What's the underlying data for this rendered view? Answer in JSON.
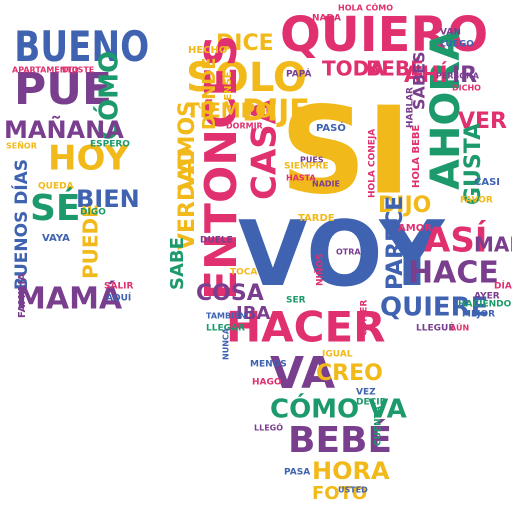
{
  "title": "",
  "colors": {
    "yellow": "#f2b91a",
    "pink": "#e0306f",
    "blue": "#3f63b0",
    "green": "#1d9a6b",
    "purple": "#7a3e8f",
    "orange": "#ea8a22",
    "dark_blue": "#2f4b9a"
  },
  "words": [
    {
      "id": "bueno",
      "text": "BUENO",
      "color": "blue"
    },
    {
      "id": "pue",
      "text": "PUE",
      "color": "purple"
    },
    {
      "id": "como-vertical",
      "text": "CÓMO",
      "color": "green"
    },
    {
      "id": "manana",
      "text": "MAÑANA",
      "color": "purple"
    },
    {
      "id": "hoy",
      "text": "HOY",
      "color": "yellow"
    },
    {
      "id": "se",
      "text": "SÉ",
      "color": "green"
    },
    {
      "id": "bien",
      "text": "BIEN",
      "color": "blue"
    },
    {
      "id": "puede",
      "text": "PUEDE",
      "color": "yellow"
    },
    {
      "id": "buenos-dias",
      "text": "BUENOS DÍAS",
      "color": "blue"
    },
    {
      "id": "mama",
      "text": "MAMÁ",
      "color": "purple"
    },
    {
      "id": "quiero",
      "text": "QUIERO",
      "color": "pink"
    },
    {
      "id": "solo",
      "text": "SOLO",
      "color": "yellow"
    },
    {
      "id": "dice",
      "text": "DICE",
      "color": "yellow"
    },
    {
      "id": "si",
      "text": "SI",
      "color": "yellow"
    },
    {
      "id": "voy",
      "text": "VOY",
      "color": "blue"
    },
    {
      "id": "entonces",
      "text": "ENTONCES",
      "color": "pink"
    },
    {
      "id": "casa",
      "text": "CASA",
      "color": "pink"
    },
    {
      "id": "ahora",
      "text": "AHORA",
      "color": "green"
    },
    {
      "id": "dije",
      "text": "DIJE",
      "color": "yellow"
    },
    {
      "id": "tiempo",
      "text": "TIEMPO",
      "color": "yellow"
    },
    {
      "id": "toda",
      "text": "TODA",
      "color": "pink"
    },
    {
      "id": "bebe-top",
      "text": "BEBÉ",
      "color": "pink"
    },
    {
      "id": "ahi",
      "text": "AHÍ",
      "color": "pink"
    },
    {
      "id": "ir",
      "text": "IR",
      "color": "purple"
    },
    {
      "id": "ver",
      "text": "VER",
      "color": "pink"
    },
    {
      "id": "gusta",
      "text": "GUSTA",
      "color": "green"
    },
    {
      "id": "asi",
      "text": "ASÍ",
      "color": "pink"
    },
    {
      "id": "hace",
      "text": "HACE",
      "color": "purple"
    },
    {
      "id": "mal",
      "text": "MAL",
      "color": "purple"
    },
    {
      "id": "quiere",
      "text": "QUIERE",
      "color": "blue"
    },
    {
      "id": "dijo",
      "text": "DIJO",
      "color": "yellow"
    },
    {
      "id": "parece",
      "text": "PARECE",
      "color": "blue"
    },
    {
      "id": "hacer",
      "text": "HACER",
      "color": "pink"
    },
    {
      "id": "cosa",
      "text": "COSA",
      "color": "purple"
    },
    {
      "id": "iba",
      "text": "IBA",
      "color": "purple"
    },
    {
      "id": "verdad",
      "text": "VERDAD",
      "color": "yellow"
    },
    {
      "id": "vamos",
      "text": "VAMOS",
      "color": "yellow"
    },
    {
      "id": "donde",
      "text": "DÓNDE",
      "color": "yellow"
    },
    {
      "id": "sabe",
      "text": "SABE",
      "color": "green"
    },
    {
      "id": "va",
      "text": "VA",
      "color": "purple"
    },
    {
      "id": "creo",
      "text": "CREO",
      "color": "yellow"
    },
    {
      "id": "como-va",
      "text": "CÓMO VA",
      "color": "green"
    },
    {
      "id": "bebe-bottom",
      "text": "BEBÉ",
      "color": "purple"
    },
    {
      "id": "hora",
      "text": "HORA",
      "color": "yellow"
    },
    {
      "id": "foto",
      "text": "FOTO",
      "color": "yellow"
    },
    {
      "id": "sabes",
      "text": "SABES",
      "color": "purple"
    },
    {
      "id": "hola-como",
      "text": "HOLA CÓMO",
      "color": "pink"
    },
    {
      "id": "hecho",
      "text": "HECHO",
      "color": "yellow"
    },
    {
      "id": "pense",
      "text": "PENSÉ",
      "color": "yellow"
    },
    {
      "id": "nada",
      "text": "NADA",
      "color": "pink"
    },
    {
      "id": "vaya",
      "text": "VAYA",
      "color": "blue"
    },
    {
      "id": "hola-bebe",
      "text": "HOLA BEBÉ",
      "color": "pink"
    },
    {
      "id": "hola-coneja",
      "text": "HOLA CONEJA",
      "color": "pink"
    },
    {
      "id": "hablar",
      "text": "HABLAR",
      "color": "purple"
    },
    {
      "id": "tarde",
      "text": "TARDE",
      "color": "yellow"
    },
    {
      "id": "paso",
      "text": "PASÓ",
      "color": "blue"
    },
    {
      "id": "amor",
      "text": "AMOR",
      "color": "pink"
    },
    {
      "id": "persona",
      "text": "PERSONA",
      "color": "purple"
    },
    {
      "id": "luego",
      "text": "LUEGO",
      "color": "blue"
    },
    {
      "id": "van",
      "text": "VAN",
      "color": "purple"
    },
    {
      "id": "dicho",
      "text": "DICHO",
      "color": "pink"
    },
    {
      "id": "casi",
      "text": "CASI",
      "color": "blue"
    },
    {
      "id": "favor",
      "text": "FAVOR",
      "color": "yellow"
    },
    {
      "id": "haciendo",
      "text": "HACIENDO",
      "color": "green"
    },
    {
      "id": "mejor",
      "text": "MEJOR",
      "color": "blue"
    },
    {
      "id": "dia",
      "text": "DÍA",
      "color": "pink"
    },
    {
      "id": "llegue",
      "text": "LLEGUÉ",
      "color": "purple"
    },
    {
      "id": "aun",
      "text": "AÚN",
      "color": "pink"
    },
    {
      "id": "comer",
      "text": "COMER",
      "color": "pink"
    },
    {
      "id": "menos",
      "text": "MENOS",
      "color": "blue"
    },
    {
      "id": "hago",
      "text": "HAGO",
      "color": "pink"
    },
    {
      "id": "decir",
      "text": "DECIR",
      "color": "green"
    },
    {
      "id": "cuenta",
      "text": "CUENTA",
      "color": "green"
    },
    {
      "id": "pasa",
      "text": "PASA",
      "color": "blue"
    },
    {
      "id": "usted",
      "text": "USTED",
      "color": "blue"
    },
    {
      "id": "llego",
      "text": "LLEGÓ",
      "color": "purple"
    },
    {
      "id": "salir",
      "text": "SALIR",
      "color": "pink"
    },
    {
      "id": "aqui",
      "text": "AQUÍ",
      "color": "blue"
    },
    {
      "id": "familia",
      "text": "FAMILIA",
      "color": "purple"
    },
    {
      "id": "espero",
      "text": "ESPERO",
      "color": "green"
    },
    {
      "id": "queda",
      "text": "QUEDA",
      "color": "yellow"
    },
    {
      "id": "digo",
      "text": "DIGO",
      "color": "green"
    },
    {
      "id": "dormir",
      "text": "DORMIR",
      "color": "pink"
    },
    {
      "id": "pues",
      "text": "PUES",
      "color": "purple"
    },
    {
      "id": "nadie",
      "text": "NADIE",
      "color": "purple"
    },
    {
      "id": "ninos",
      "text": "NIÑOS",
      "color": "pink"
    },
    {
      "id": "ser",
      "text": "SER",
      "color": "green"
    },
    {
      "id": "toca",
      "text": "TOCA",
      "color": "yellow"
    },
    {
      "id": "llegar",
      "text": "LLEGAR",
      "color": "green"
    },
    {
      "id": "siempre",
      "text": "SIEMPRE",
      "color": "yellow"
    },
    {
      "id": "hasta",
      "text": "HASTA",
      "color": "pink"
    },
    {
      "id": "otra",
      "text": "OTRA",
      "color": "purple"
    },
    {
      "id": "papa",
      "text": "PAPÁ",
      "color": "purple"
    },
    {
      "id": "apartamento",
      "text": "APARTAMENTO",
      "color": "pink"
    },
    {
      "id": "dijiste",
      "text": "DIJISTE",
      "color": "pink"
    },
    {
      "id": "senor",
      "text": "SEÑOR",
      "color": "yellow"
    },
    {
      "id": "tambien",
      "text": "TAMBIÉN",
      "color": "blue"
    },
    {
      "id": "vez",
      "text": "VEZ",
      "color": "blue"
    },
    {
      "id": "igual",
      "text": "IGUAL",
      "color": "yellow"
    },
    {
      "id": "duele",
      "text": "DUELE",
      "color": "purple"
    },
    {
      "id": "ayer",
      "text": "AYER",
      "color": "purple"
    },
    {
      "id": "nunca",
      "text": "NUNCA",
      "color": "blue"
    }
  ]
}
